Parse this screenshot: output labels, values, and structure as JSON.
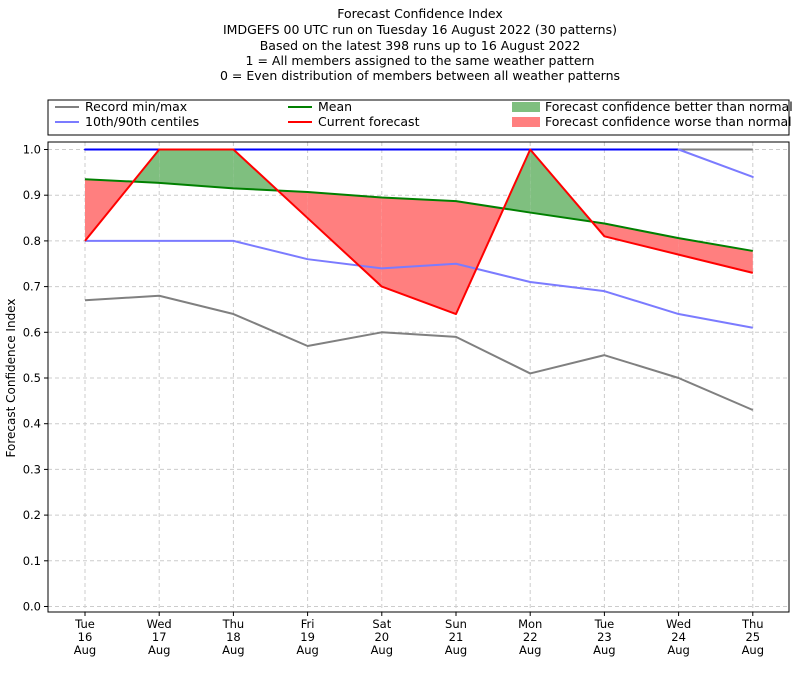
{
  "chart_data": {
    "type": "line",
    "title_lines": [
      "Forecast Confidence Index",
      "IMDGEFS 00 UTC run on Tuesday 16 August 2022 (30 patterns)",
      "Based on the latest 398 runs up to 16 August 2022",
      "1 = All members assigned to the same weather pattern",
      "0 = Even distribution of members between all weather patterns"
    ],
    "ylabel": "Forecast Confidence Index",
    "ylim": [
      0,
      1
    ],
    "yticks": [
      "0.0",
      "0.1",
      "0.2",
      "0.3",
      "0.4",
      "0.5",
      "0.6",
      "0.7",
      "0.8",
      "0.9",
      "1.0"
    ],
    "grid": true,
    "categories": [
      [
        "Tue",
        "16",
        "Aug"
      ],
      [
        "Wed",
        "17",
        "Aug"
      ],
      [
        "Thu",
        "18",
        "Aug"
      ],
      [
        "Fri",
        "19",
        "Aug"
      ],
      [
        "Sat",
        "20",
        "Aug"
      ],
      [
        "Sun",
        "21",
        "Aug"
      ],
      [
        "Mon",
        "22",
        "Aug"
      ],
      [
        "Tue",
        "23",
        "Aug"
      ],
      [
        "Wed",
        "24",
        "Aug"
      ],
      [
        "Thu",
        "25",
        "Aug"
      ]
    ],
    "series": {
      "record_max": [
        1.0,
        1.0,
        1.0,
        1.0,
        1.0,
        1.0,
        1.0,
        1.0,
        1.0,
        1.0
      ],
      "record_min": [
        0.67,
        0.68,
        0.64,
        0.57,
        0.6,
        0.59,
        0.51,
        0.55,
        0.5,
        0.43
      ],
      "centile_90": [
        1.0,
        1.0,
        1.0,
        1.0,
        1.0,
        1.0,
        1.0,
        1.0,
        1.0,
        0.94
      ],
      "centile_10": [
        0.8,
        0.8,
        0.8,
        0.76,
        0.74,
        0.75,
        0.71,
        0.69,
        0.64,
        0.61
      ],
      "mean": [
        0.935,
        0.927,
        0.915,
        0.907,
        0.895,
        0.887,
        0.862,
        0.838,
        0.806,
        0.778
      ],
      "current": [
        0.8,
        1.0,
        1.0,
        0.85,
        0.7,
        0.64,
        1.0,
        0.81,
        0.77,
        0.73
      ]
    },
    "legend": {
      "placement": "top",
      "items": [
        {
          "label": "Record min/max",
          "kind": "line",
          "color": "#808080"
        },
        {
          "label": "10th/90th centiles",
          "kind": "line",
          "color": "#7b7bff"
        },
        {
          "label": "Mean",
          "kind": "line",
          "color": "#008000"
        },
        {
          "label": "Current forecast",
          "kind": "line",
          "color": "#ff0000"
        },
        {
          "label": "Forecast confidence better than normal",
          "kind": "patch",
          "color": "#7fbf7f"
        },
        {
          "label": "Forecast confidence worse than normal",
          "kind": "patch",
          "color": "#ff7f7f"
        }
      ]
    },
    "colors": {
      "record": "#808080",
      "centile": "#7b7bff",
      "centile_top": "#0000ff",
      "mean": "#008000",
      "current": "#ff0000",
      "better_fill": "#7fbf7f",
      "worse_fill": "#ff7f7f",
      "grid": "#cccccc"
    }
  }
}
